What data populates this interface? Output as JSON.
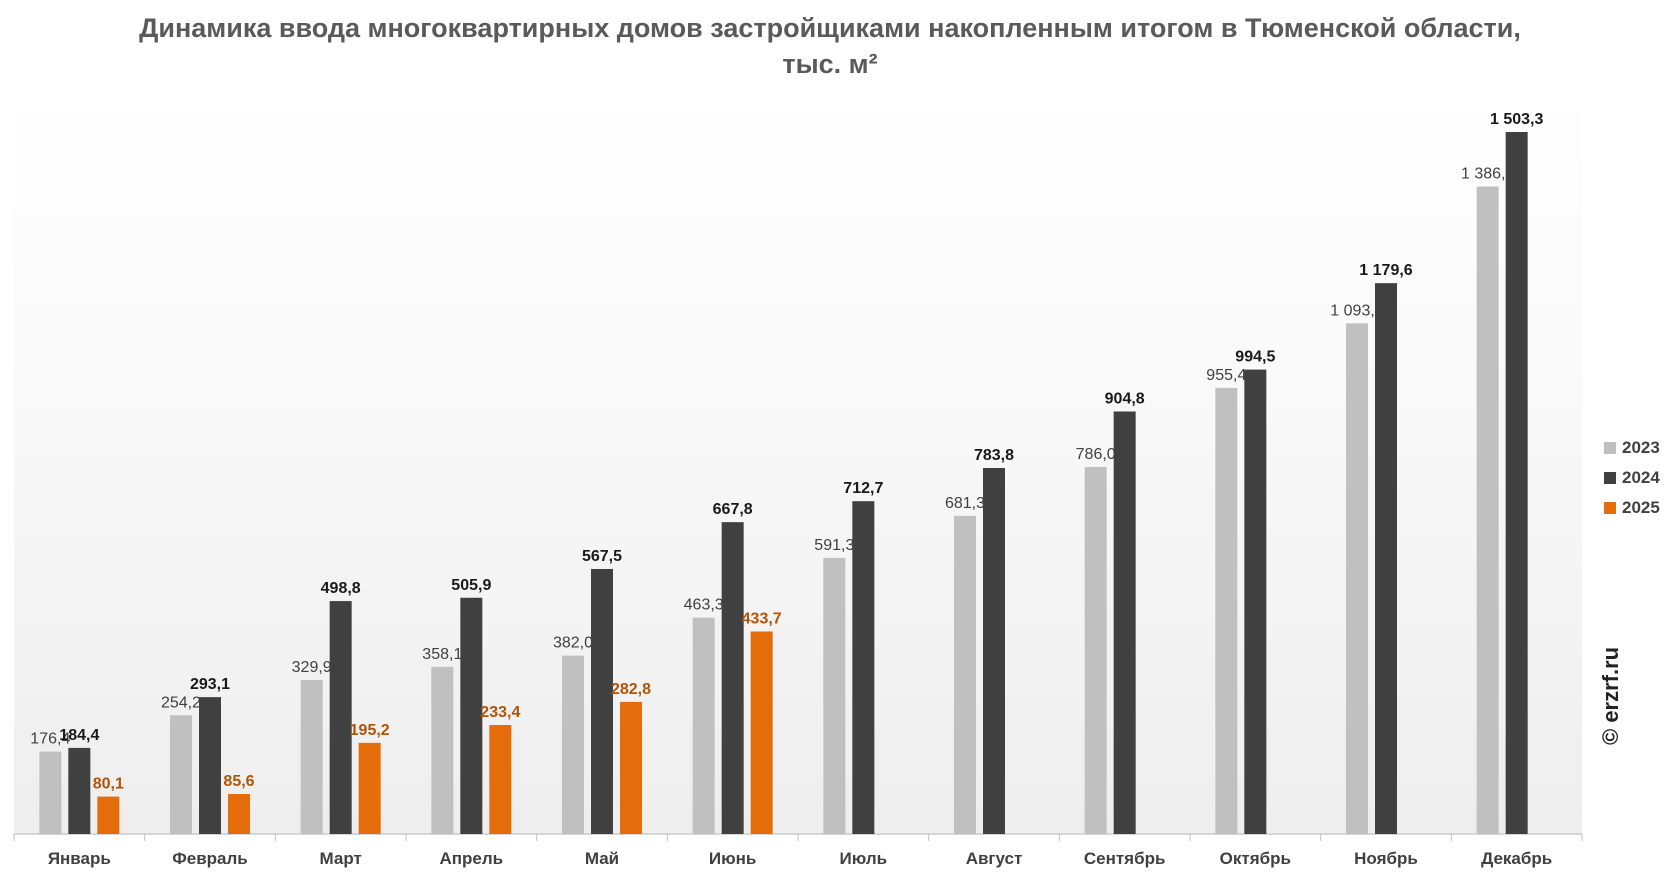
{
  "chart_data": {
    "type": "bar",
    "title": "Динамика ввода многоквартирных домов застройщиками накопленным итогом в Тюменской области, тыс. м²",
    "categories": [
      "Январь",
      "Февраль",
      "Март",
      "Апрель",
      "Май",
      "Июнь",
      "Июль",
      "Август",
      "Сентябрь",
      "Октябрь",
      "Ноябрь",
      "Декабрь"
    ],
    "series": [
      {
        "name": "2023",
        "color": "#c0c0c0",
        "label_color": "#404040",
        "label_bold": false,
        "values": [
          176.4,
          254.2,
          329.9,
          358.1,
          382.0,
          463.3,
          591.3,
          681.3,
          786.0,
          955.4,
          1093.5,
          1386.7
        ],
        "labels": [
          "176,4",
          "254,2",
          "329,9",
          "358,1",
          "382,0",
          "463,3",
          "591,3",
          "681,3",
          "786,0",
          "955,4",
          "1 093,5",
          "1 386,7"
        ]
      },
      {
        "name": "2024",
        "color": "#404040",
        "label_color": "#1a1a1a",
        "label_bold": true,
        "values": [
          184.4,
          293.1,
          498.8,
          505.9,
          567.5,
          667.8,
          712.7,
          783.8,
          904.8,
          994.5,
          1179.6,
          1503.3
        ],
        "labels": [
          "184,4",
          "293,1",
          "498,8",
          "505,9",
          "567,5",
          "667,8",
          "712,7",
          "783,8",
          "904,8",
          "994,5",
          "1 179,6",
          "1 503,3"
        ]
      },
      {
        "name": "2025",
        "color": "#e46c0a",
        "label_color": "#b25407",
        "label_bold": true,
        "values": [
          80.1,
          85.6,
          195.2,
          233.4,
          282.8,
          433.7,
          null,
          null,
          null,
          null,
          null,
          null
        ],
        "labels": [
          "80,1",
          "85,6",
          "195,2",
          "233,4",
          "282,8",
          "433,7",
          "",
          "",
          "",
          "",
          "",
          ""
        ]
      }
    ],
    "ylim": [
      0,
      1503.3
    ],
    "grid": false,
    "legend_position": "right"
  },
  "watermark": "© erzrf.ru"
}
